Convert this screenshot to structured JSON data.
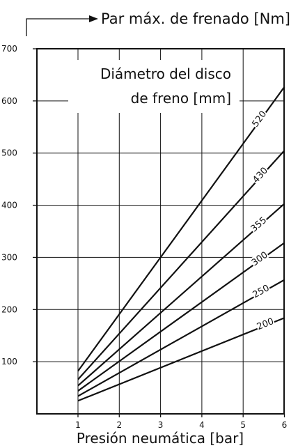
{
  "chart_data": {
    "type": "line",
    "title": "Par máx. de frenado [Nm]",
    "xlabel": "Presión neumática [bar]",
    "ylabel": "",
    "legend_title_line1": "Diámetro del disco",
    "legend_title_line2": "de freno [mm]",
    "xlim": [
      0,
      6
    ],
    "ylim": [
      0,
      700
    ],
    "x_ticks": [
      "1",
      "2",
      "3",
      "4",
      "5",
      "6"
    ],
    "y_ticks": [
      "100",
      "200",
      "300",
      "400",
      "500",
      "600",
      "700"
    ],
    "grid": true,
    "series": [
      {
        "name": "200",
        "x": [
          1,
          6
        ],
        "y": [
          25,
          184
        ]
      },
      {
        "name": "250",
        "x": [
          1,
          6
        ],
        "y": [
          34,
          257
        ]
      },
      {
        "name": "300",
        "x": [
          1,
          6
        ],
        "y": [
          44,
          328
        ]
      },
      {
        "name": "355",
        "x": [
          1,
          6
        ],
        "y": [
          54,
          403
        ]
      },
      {
        "name": "430",
        "x": [
          1,
          6
        ],
        "y": [
          66,
          505
        ]
      },
      {
        "name": "520",
        "x": [
          1,
          6
        ],
        "y": [
          82,
          627
        ]
      }
    ]
  }
}
